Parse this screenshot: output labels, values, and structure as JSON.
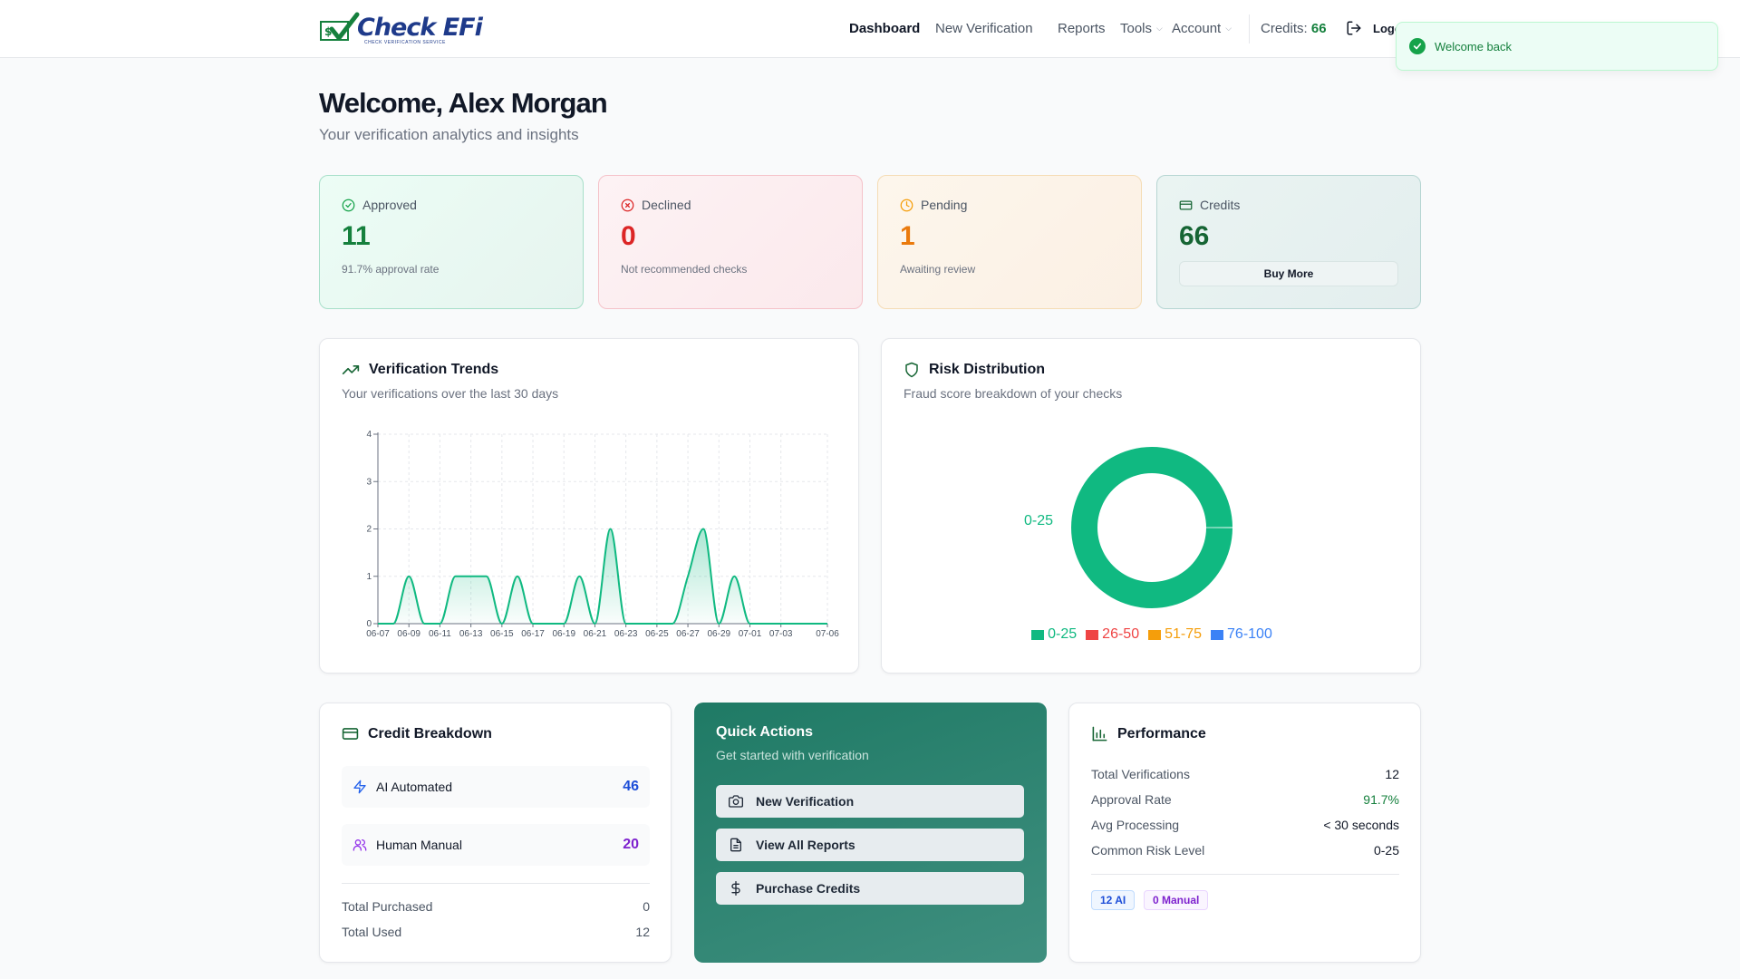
{
  "header": {
    "logo_text": "Check EFi",
    "logo_tagline": "CHECK VERIFICATION SERVICE",
    "nav": [
      {
        "label": "Dashboard",
        "active": true
      },
      {
        "label": "New Verification"
      },
      {
        "label": "Reports"
      },
      {
        "label": "Tools"
      },
      {
        "label": "Account"
      }
    ],
    "credits_label": "Credits:",
    "credits_value": "66",
    "logout_label": "Logo"
  },
  "toast": {
    "message": "Welcome back"
  },
  "welcome": {
    "title": "Welcome, Alex Morgan",
    "subtitle": "Your verification analytics and insights"
  },
  "stats": {
    "approved": {
      "label": "Approved",
      "value": "11",
      "desc": "91.7% approval rate"
    },
    "declined": {
      "label": "Declined",
      "value": "0",
      "desc": "Not recommended checks"
    },
    "pending": {
      "label": "Pending",
      "value": "1",
      "desc": "Awaiting review"
    },
    "credits": {
      "label": "Credits",
      "value": "66",
      "button": "Buy More"
    }
  },
  "trends": {
    "title": "Verification Trends",
    "subtitle": "Your verifications over the last 30 days"
  },
  "risk": {
    "title": "Risk Distribution",
    "subtitle": "Fraud score breakdown of your checks",
    "slice_label": "0-25"
  },
  "chart_data": [
    {
      "type": "area",
      "x": [
        "06-07",
        "06-08",
        "06-09",
        "06-10",
        "06-11",
        "06-12",
        "06-13",
        "06-14",
        "06-15",
        "06-16",
        "06-17",
        "06-18",
        "06-19",
        "06-20",
        "06-21",
        "06-22",
        "06-23",
        "06-24",
        "06-25",
        "06-26",
        "06-27",
        "06-28",
        "06-29",
        "06-30",
        "07-01",
        "07-02",
        "07-03",
        "07-04",
        "07-05",
        "07-06"
      ],
      "x_tick_labels": [
        "06-07",
        "06-09",
        "06-11",
        "06-13",
        "06-15",
        "06-17",
        "06-19",
        "06-21",
        "06-23",
        "06-25",
        "06-27",
        "06-29",
        "07-01",
        "07-03",
        "07-06"
      ],
      "values": [
        0,
        0,
        1,
        0,
        0,
        1,
        1,
        1,
        0,
        1,
        0,
        0,
        0,
        1,
        0,
        2,
        0,
        0,
        0,
        0,
        1,
        2,
        0,
        1,
        0,
        0,
        0,
        0,
        0,
        0
      ],
      "ylim": [
        0,
        4
      ],
      "y_ticks": [
        0,
        1,
        2,
        3,
        4
      ],
      "grid": true,
      "color": "#10b981"
    },
    {
      "type": "pie",
      "donut": true,
      "categories": [
        "0-25",
        "26-50",
        "51-75",
        "76-100"
      ],
      "values": [
        12,
        0,
        0,
        0
      ],
      "colors": [
        "#10b981",
        "#ef4444",
        "#f59e0b",
        "#3b82f6"
      ],
      "legend": "bottom"
    }
  ],
  "credit_breakdown": {
    "title": "Credit Breakdown",
    "ai_label": "AI Automated",
    "ai_value": "46",
    "manual_label": "Human Manual",
    "manual_value": "20",
    "purchased_label": "Total Purchased",
    "purchased_value": "0",
    "used_label": "Total Used",
    "used_value": "12"
  },
  "quick_actions": {
    "title": "Quick Actions",
    "subtitle": "Get started with verification",
    "buttons": [
      "New Verification",
      "View All Reports",
      "Purchase Credits"
    ]
  },
  "performance": {
    "title": "Performance",
    "rows": [
      {
        "label": "Total Verifications",
        "value": "12"
      },
      {
        "label": "Approval Rate",
        "value": "91.7%"
      },
      {
        "label": "Avg Processing",
        "value": "< 30 seconds"
      },
      {
        "label": "Common Risk Level",
        "value": "0-25"
      }
    ],
    "badge_ai": "12 AI",
    "badge_manual": "0 Manual"
  },
  "colors": {
    "brand": "#1e3a8a",
    "approved": "#15803d",
    "declined": "#dc2626",
    "pending": "#ea7a0c",
    "quick_bg": "#1f7a65"
  }
}
